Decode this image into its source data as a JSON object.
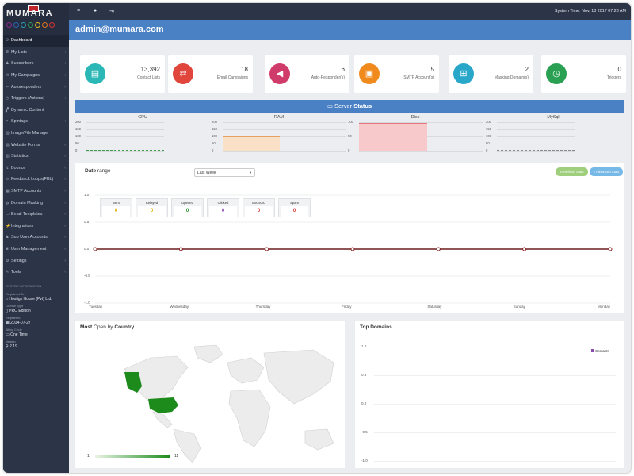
{
  "app": {
    "logo_text": "MUMARA",
    "logo_dot_colors": [
      "#8b2a8f",
      "#2c63b5",
      "#2a9fb8",
      "#2aa352",
      "#e6b51f",
      "#e1741e",
      "#d63333"
    ]
  },
  "topbar": {
    "system_time": "System Time: Nov, 13 2017 07:23 AM",
    "icons": [
      "menu-icon",
      "user-icon",
      "logout-icon"
    ]
  },
  "banner": {
    "title": "admin@mumara.com"
  },
  "sidebar": {
    "items": [
      {
        "label": "Dashboard",
        "icon": "power-icon",
        "active": true,
        "chevron": false
      },
      {
        "label": "My Lists",
        "icon": "list-icon",
        "chevron": true
      },
      {
        "label": "Subscribers",
        "icon": "users-icon",
        "chevron": true
      },
      {
        "label": "My Campaigns",
        "icon": "envelope-icon",
        "chevron": true
      },
      {
        "label": "Autoresponders",
        "icon": "reply-icon",
        "chevron": true
      },
      {
        "label": "Triggers (Actions)",
        "icon": "clock-icon",
        "chevron": true
      },
      {
        "label": "Dynamic Content",
        "icon": "puzzle-icon",
        "chevron": false
      },
      {
        "label": "Spintags",
        "icon": "tag-icon",
        "chevron": true
      },
      {
        "label": "Image/File Manager",
        "icon": "image-icon",
        "chevron": false
      },
      {
        "label": "Website Forms",
        "icon": "form-icon",
        "chevron": true
      },
      {
        "label": "Statistics",
        "icon": "chart-icon",
        "chevron": true
      },
      {
        "label": "Bounce",
        "icon": "bounce-icon",
        "chevron": true
      },
      {
        "label": "Feedback Loops(FBL)",
        "icon": "feedback-icon",
        "chevron": true
      },
      {
        "label": "SMTP Accounts",
        "icon": "server-icon",
        "chevron": true
      },
      {
        "label": "Domain Masking",
        "icon": "globe-icon",
        "chevron": true
      },
      {
        "label": "Email Templates",
        "icon": "template-icon",
        "chevron": true
      },
      {
        "label": "Integrations",
        "icon": "plug-icon",
        "chevron": true
      },
      {
        "label": "Sub User Accounts",
        "icon": "user-group-icon",
        "chevron": true
      },
      {
        "label": "User Management",
        "icon": "user-cog-icon",
        "chevron": true
      },
      {
        "label": "Settings",
        "icon": "gear-icon",
        "chevron": true
      },
      {
        "label": "Tools",
        "icon": "wrench-icon",
        "chevron": true
      }
    ],
    "system_info": {
      "heading": "SYSTEM INFORMATION",
      "registered_to_label": "Registered To",
      "registered_to": "Hostigs House (Pvt) Ltd.",
      "license_type_label": "License Type",
      "license_type": "PRO Edition",
      "registered_label": "Registered",
      "registered": "2014-07-27",
      "billing_cycle_label": "Billing Cycle",
      "billing_cycle": "One Time",
      "version_label": "Version",
      "version": "2.19"
    }
  },
  "stats": [
    {
      "value": "13,392",
      "label": "Contact Lists",
      "color": "#2ab7b5",
      "icon": "clipboard-icon",
      "glyph": "▤"
    },
    {
      "value": "18",
      "label": "Email Campaigns",
      "color": "#e0463c",
      "icon": "exchange-icon",
      "glyph": "⇄"
    },
    {
      "value": "6",
      "label": "Auto-Responder(s)",
      "color": "#d03c6a",
      "icon": "megaphone-icon",
      "glyph": "◀"
    },
    {
      "value": "5",
      "label": "SMTP Account(s)",
      "color": "#f08a1c",
      "icon": "lock-icon",
      "glyph": "▣"
    },
    {
      "value": "2",
      "label": "Masking Domain(s)",
      "color": "#29a7c9",
      "icon": "sitemap-icon",
      "glyph": "⊞"
    },
    {
      "value": "0",
      "label": "Triggers",
      "color": "#2aa052",
      "icon": "clock-icon",
      "glyph": "◷"
    }
  ],
  "server_status": {
    "title_light": "Server",
    "title_bold": "Status",
    "charts": [
      {
        "title": "CPU",
        "y_ticks": [
          "200",
          "150",
          "100",
          "50",
          "0"
        ],
        "level": 0,
        "fill": "#b9e3bd",
        "line": "#3a9e48"
      },
      {
        "title": "RAM",
        "y_ticks": [
          "200",
          "150",
          "100",
          "50",
          "0"
        ],
        "level": 0.5,
        "fill": "#f9e0c6",
        "line": "#e3a165"
      },
      {
        "title": "Disk",
        "y_ticks": [
          "100",
          "50",
          "0"
        ],
        "level": 0.98,
        "fill": "#f8c9cb",
        "line": "#e27b80"
      },
      {
        "title": "MySql",
        "y_ticks": [
          "200",
          "150",
          "100",
          "50",
          "0"
        ],
        "level": 0,
        "fill": "#cfcfcf",
        "line": "#888"
      }
    ]
  },
  "date_range": {
    "title_bold": "Date",
    "title_light": "range",
    "select_value": "Last Week",
    "refresh_button": "↻ Refresh Stats",
    "advanced_button": "≡ Advanced Stats",
    "boxes": [
      {
        "label": "Sent",
        "value": "0",
        "color": "#e0b000"
      },
      {
        "label": "Relayed",
        "value": "0",
        "color": "#e0b000"
      },
      {
        "label": "Opened",
        "value": "0",
        "color": "#2a8a2a"
      },
      {
        "label": "Clicked",
        "value": "0",
        "color": "#8a4bb0"
      },
      {
        "label": "Bounced",
        "value": "0",
        "color": "#d03030"
      },
      {
        "label": "Spam",
        "value": "0",
        "color": "#d03030"
      }
    ]
  },
  "chart_data": {
    "type": "line",
    "x": [
      "Tuesday",
      "Wednesday",
      "Thursday",
      "Friday",
      "Saturday",
      "Sunday",
      "Monday"
    ],
    "series": [
      {
        "values": [
          0,
          0,
          0,
          0,
          0,
          0,
          0
        ]
      }
    ],
    "y_ticks": [
      "1.0",
      "0.5",
      "0.0",
      "-0.5",
      "-1.0"
    ],
    "ylim": [
      -1.0,
      1.0
    ]
  },
  "most_open": {
    "title_bold1": "Most",
    "title_light": "Open by",
    "title_bold2": "Country",
    "scale_min": "1",
    "scale_max": "11"
  },
  "top_domains": {
    "title": "Top Domains",
    "y_ticks": [
      "1.0",
      "0.5",
      "0.0",
      "-0.5",
      "-1.0"
    ],
    "legend": "Contacts"
  }
}
